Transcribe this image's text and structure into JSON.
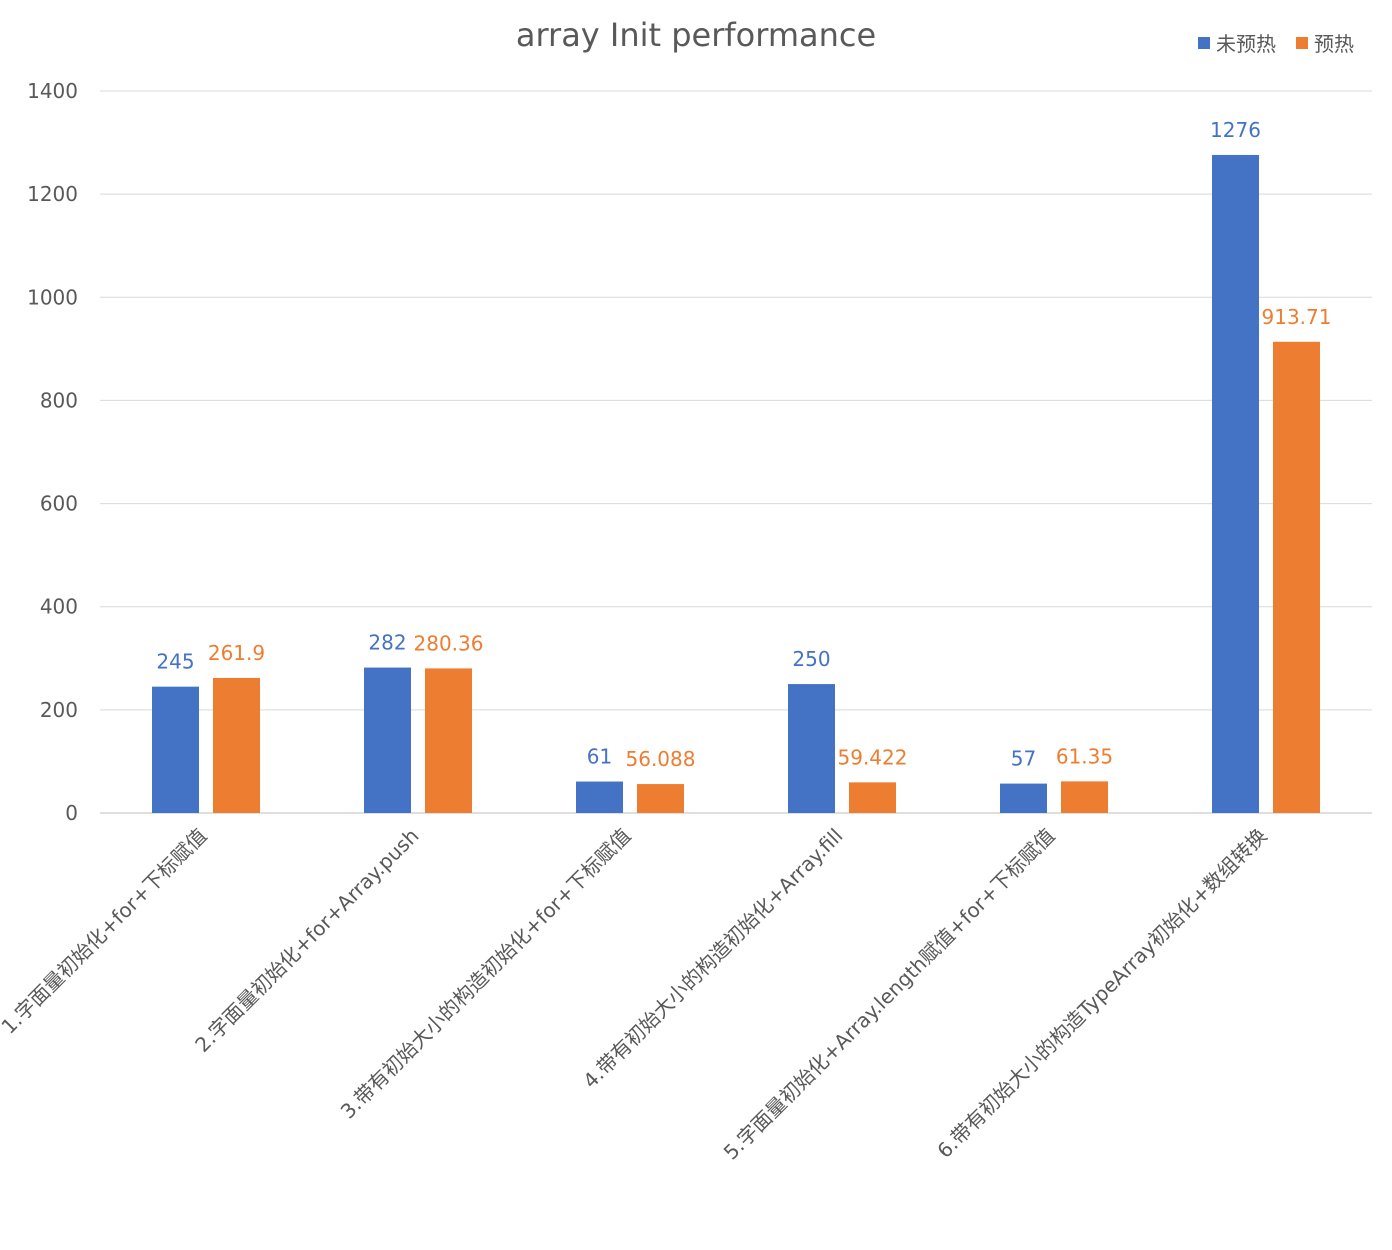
{
  "chart_data": {
    "type": "bar",
    "title": "array Init performance",
    "categories": [
      "1.字面量初始化+for+下标赋值",
      "2.字面量初始化+for+Array.push",
      "3.带有初始大小的构造初始化+for+下标赋值",
      "4.带有初始大小的构造初始化+Array.fill",
      "5.字面量初始化+Array.length赋值+for+下标赋值",
      "6.带有初始大小的构造TypeArray初始化+数组转换"
    ],
    "series": [
      {
        "name": "未预热",
        "color": "#4472C4",
        "values": [
          245,
          282,
          61,
          250,
          57,
          1276
        ],
        "labels": [
          "245",
          "282",
          "61",
          "250",
          "57",
          "1276"
        ]
      },
      {
        "name": "预热",
        "color": "#ED7D31",
        "values": [
          261.9,
          280.36,
          56.088,
          59.422,
          61.35,
          913.71
        ],
        "labels": [
          "261.9",
          "280.36",
          "56.088",
          "59.422",
          "61.35",
          "913.71"
        ]
      }
    ],
    "ylim": [
      0,
      1400
    ],
    "yticks": [
      "0",
      "200",
      "400",
      "600",
      "800",
      "1000",
      "1200",
      "1400"
    ],
    "ytick_values": [
      0,
      200,
      400,
      600,
      800,
      1000,
      1200,
      1400
    ],
    "grid": true,
    "legend": "top-right"
  }
}
